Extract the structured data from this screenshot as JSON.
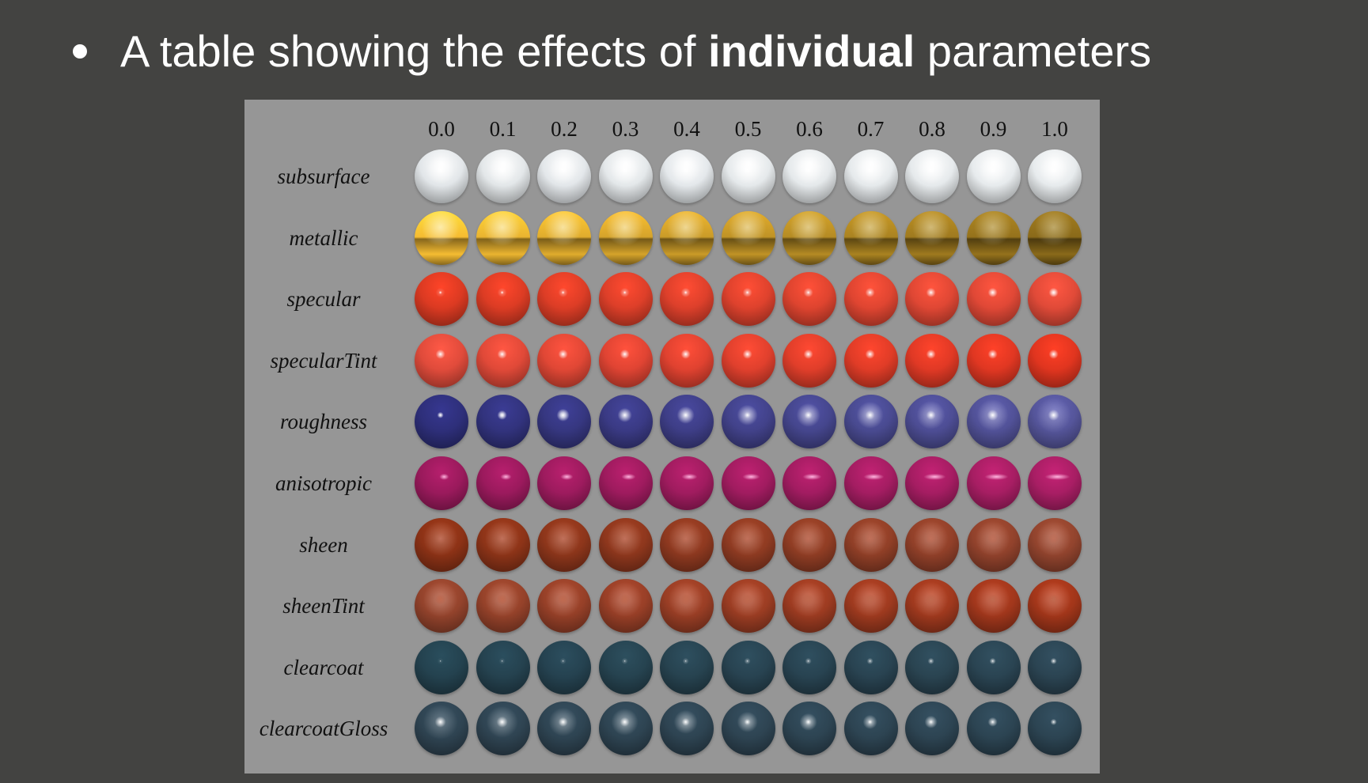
{
  "slide": {
    "title_prefix": "A table showing the effects of ",
    "title_bold": "individual",
    "title_suffix": " parameters"
  },
  "table": {
    "column_labels": [
      "0.0",
      "0.1",
      "0.2",
      "0.3",
      "0.4",
      "0.5",
      "0.6",
      "0.7",
      "0.8",
      "0.9",
      "1.0"
    ],
    "rows": [
      {
        "label": "subsurface",
        "start_color": "#e2e6e9",
        "end_color": "#e7ebed",
        "highlight": "#ffffff",
        "specular": 0.55,
        "sharpness": 0.2,
        "metal": 0.0
      },
      {
        "label": "metallic",
        "start_color": "#f5bc32",
        "end_color": "#8a6a1a",
        "highlight": "#fff8d2",
        "specular": 0.8,
        "sharpness": 0.6,
        "metal": 1.0
      },
      {
        "label": "specular",
        "start_color": "#db3a22",
        "end_color": "#e04a38",
        "highlight": "#ffffff",
        "specular": 0.7,
        "sharpness": 0.9,
        "metal": 0.0
      },
      {
        "label": "specularTint",
        "start_color": "#e04b3b",
        "end_color": "#e0351f",
        "highlight": "#ffffff",
        "specular": 0.7,
        "sharpness": 0.9,
        "metal": 0.0
      },
      {
        "label": "roughness",
        "start_color": "#2e2f7a",
        "end_color": "#55559a",
        "highlight": "#ffffff",
        "specular": 0.9,
        "sharpness": 1.0,
        "metal": 0.0
      },
      {
        "label": "anisotropic",
        "start_color": "#9a1a5c",
        "end_color": "#a81e64",
        "highlight": "#ff7ac4",
        "specular": 0.8,
        "sharpness": 0.8,
        "metal": 0.0
      },
      {
        "label": "sheen",
        "start_color": "#8c3216",
        "end_color": "#92442e",
        "highlight": "#c0705a",
        "specular": 0.2,
        "sharpness": 0.0,
        "metal": 0.0
      },
      {
        "label": "sheenTint",
        "start_color": "#93432c",
        "end_color": "#a2361a",
        "highlight": "#c06a50",
        "specular": 0.2,
        "sharpness": 0.0,
        "metal": 0.0
      },
      {
        "label": "clearcoat",
        "start_color": "#24424f",
        "end_color": "#2b4452",
        "highlight": "#ffffff",
        "specular": 0.5,
        "sharpness": 1.0,
        "metal": 0.0
      },
      {
        "label": "clearcoatGloss",
        "start_color": "#2f4452",
        "end_color": "#2c4452",
        "highlight": "#ffffff",
        "specular": 0.5,
        "sharpness": 1.0,
        "metal": 0.0
      }
    ]
  }
}
